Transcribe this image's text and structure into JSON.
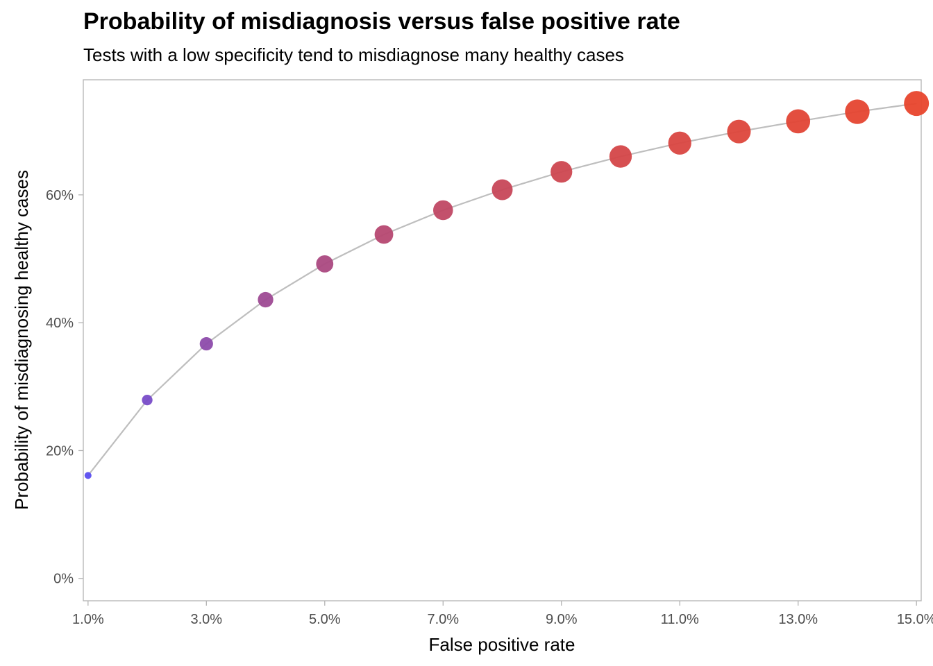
{
  "chart_data": {
    "type": "scatter",
    "title": "Probability of misdiagnosis versus false positive rate",
    "subtitle": "Tests with a low specificity tend to misdiagnose many healthy cases",
    "xlabel": "False positive rate",
    "ylabel": "Probability of misdiagnosing healthy cases",
    "xlim": [
      0.0092,
      0.1508
    ],
    "ylim": [
      -0.035,
      0.78
    ],
    "x_ticks": [
      0.01,
      0.03,
      0.05,
      0.07,
      0.09,
      0.11,
      0.13,
      0.15
    ],
    "x_tick_labels": [
      "1.0%",
      "3.0%",
      "5.0%",
      "7.0%",
      "9.0%",
      "11.0%",
      "13.0%",
      "15.0%"
    ],
    "y_ticks": [
      0,
      0.2,
      0.4,
      0.6
    ],
    "y_tick_labels": [
      "0%",
      "20%",
      "40%",
      "60%"
    ],
    "grid": false,
    "line_color": "#bebebe",
    "color_low": "#5b4ef0",
    "color_high": "#e8452c",
    "series": [
      {
        "x": [
          0.01,
          0.02,
          0.03,
          0.04,
          0.05,
          0.06,
          0.07,
          0.08,
          0.09,
          0.1,
          0.11,
          0.12,
          0.13,
          0.14,
          0.15
        ],
        "y": [
          0.161,
          0.279,
          0.367,
          0.436,
          0.492,
          0.538,
          0.576,
          0.608,
          0.636,
          0.66,
          0.681,
          0.699,
          0.715,
          0.73,
          0.743
        ]
      }
    ]
  }
}
